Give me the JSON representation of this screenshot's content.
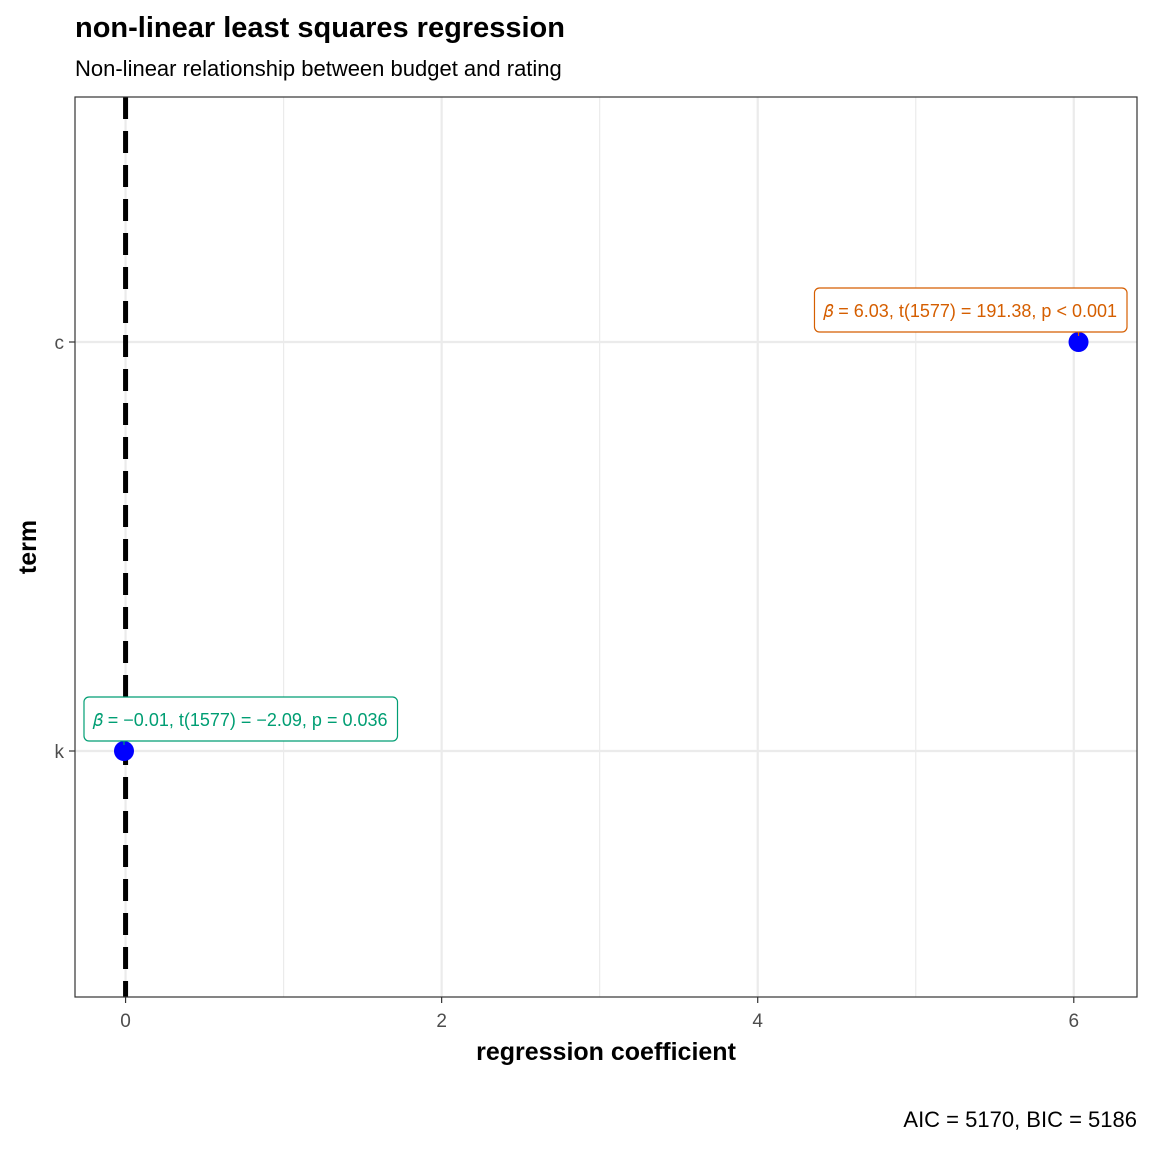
{
  "chart_data": {
    "type": "scatter",
    "title": "non-linear least squares regression",
    "subtitle": "Non-linear relationship between budget and rating",
    "xlabel": "regression coefficient",
    "ylabel": "term",
    "caption": "AIC = 5170, BIC = 5186",
    "xlim": [
      -0.32,
      6.4
    ],
    "x_ticks": [
      0,
      2,
      4,
      6
    ],
    "x_tick_labels": [
      "0",
      "2",
      "4",
      "6"
    ],
    "categories": [
      "k",
      "c"
    ],
    "reference_line_x": 0,
    "grid": true,
    "points": [
      {
        "term": "c",
        "estimate": 6.03,
        "label": "𝛽̂ = 6.03, t(1577) = 191.38, p < 0.001",
        "label_color": "#d55e00"
      },
      {
        "term": "k",
        "estimate": -0.01,
        "label": "𝛽̂ = −0.01, t(1577) = −2.09, p = 0.036",
        "label_color": "#009e73"
      }
    ],
    "colors": {
      "point": "#0000ff",
      "panel_border": "#333333",
      "grid": "#ebebeb",
      "reference_line": "#000000"
    }
  }
}
